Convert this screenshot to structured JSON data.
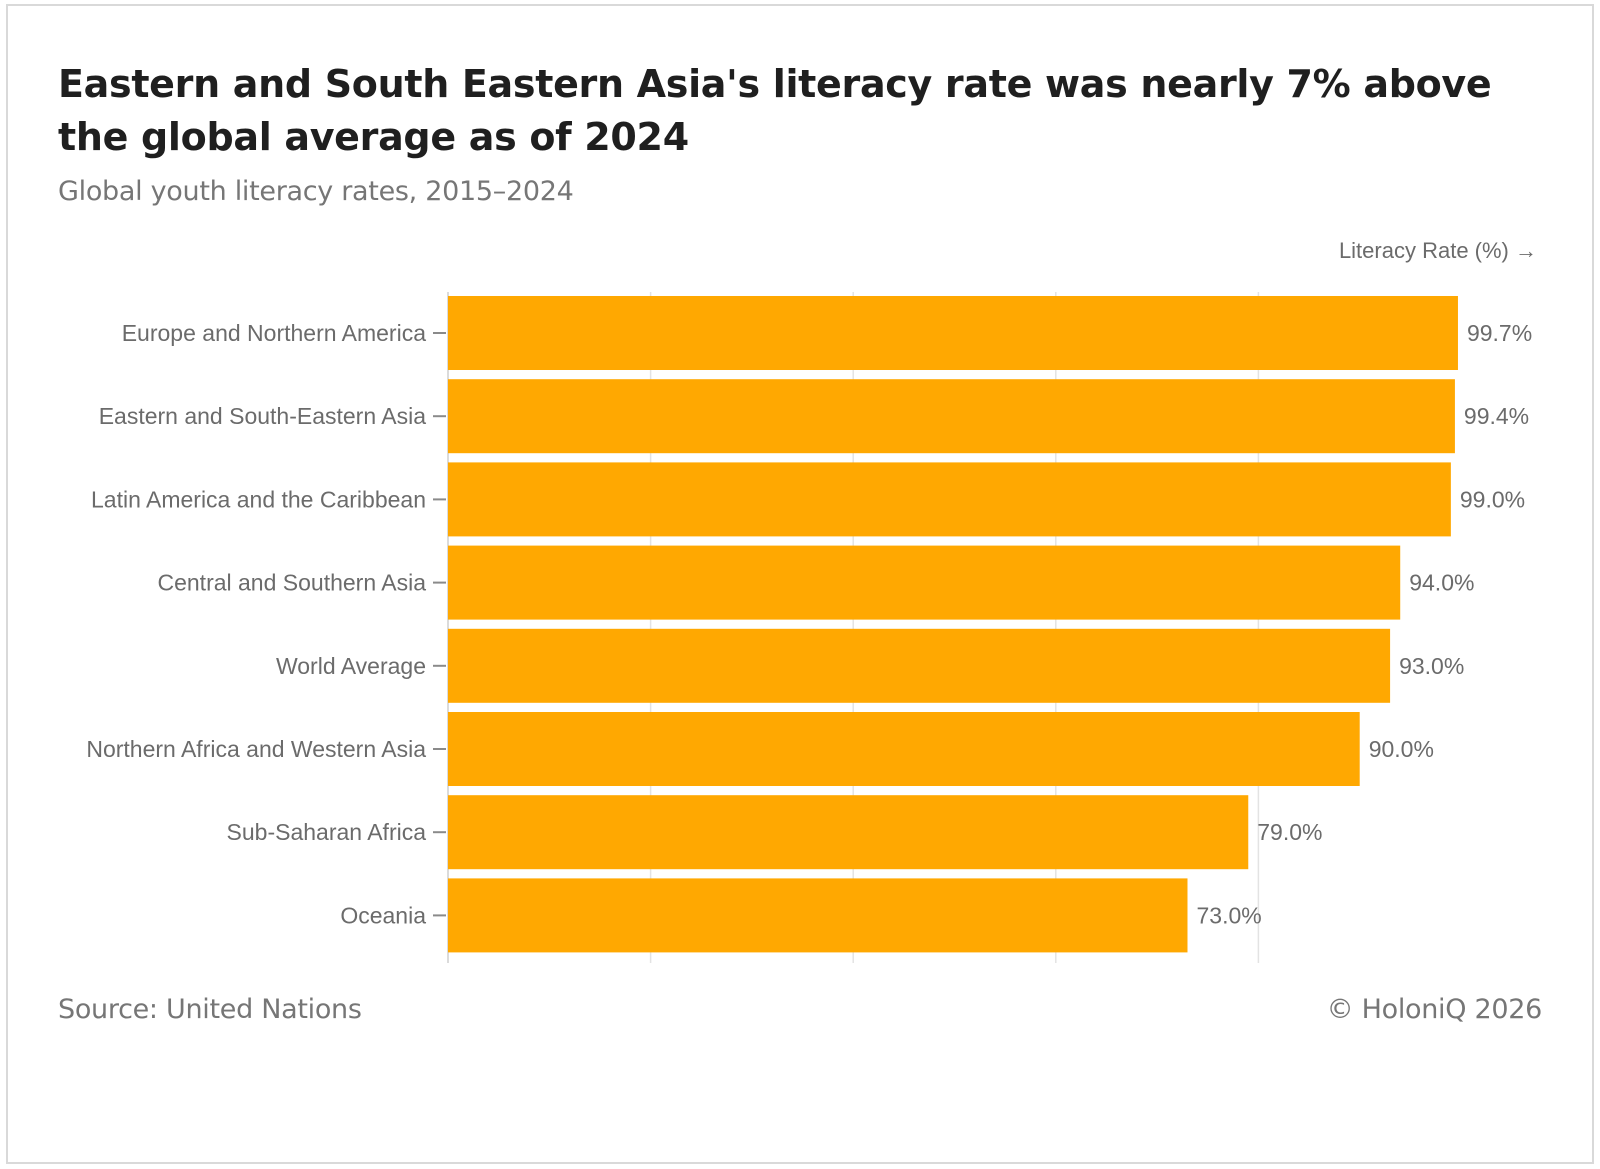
{
  "header": {
    "title": "Eastern and South Eastern Asia's literacy rate was nearly 7% above the global average as of 2024",
    "subtitle": "Global youth literacy rates, 2015–2024"
  },
  "footer": {
    "source": "Source: United Nations",
    "copyright": "© HoloniQ 2026"
  },
  "colors": {
    "bar": "#FFA801",
    "grid": "#e3e3e3",
    "label": "#6b6b6b"
  },
  "chart_data": {
    "type": "bar",
    "orientation": "horizontal",
    "title": "Eastern and South Eastern Asia's literacy rate was nearly 7% above the global average as of 2024",
    "subtitle": "Global youth literacy rates, 2015–2024",
    "xlabel": "Literacy Rate (%) →",
    "ylabel": "",
    "xlim": [
      0,
      100
    ],
    "grid": true,
    "categories": [
      "Europe and Northern America",
      "Eastern and South-Eastern Asia",
      "Latin America and the Caribbean",
      "Central and Southern Asia",
      "World Average",
      "Northern Africa and Western Asia",
      "Sub-Saharan Africa",
      "Oceania"
    ],
    "values": [
      99.7,
      99.4,
      99.0,
      94.0,
      93.0,
      90.0,
      79.0,
      73.0
    ],
    "value_labels": [
      "99.7%",
      "99.4%",
      "99.0%",
      "94.0%",
      "93.0%",
      "90.0%",
      "79.0%",
      "73.0%"
    ]
  }
}
